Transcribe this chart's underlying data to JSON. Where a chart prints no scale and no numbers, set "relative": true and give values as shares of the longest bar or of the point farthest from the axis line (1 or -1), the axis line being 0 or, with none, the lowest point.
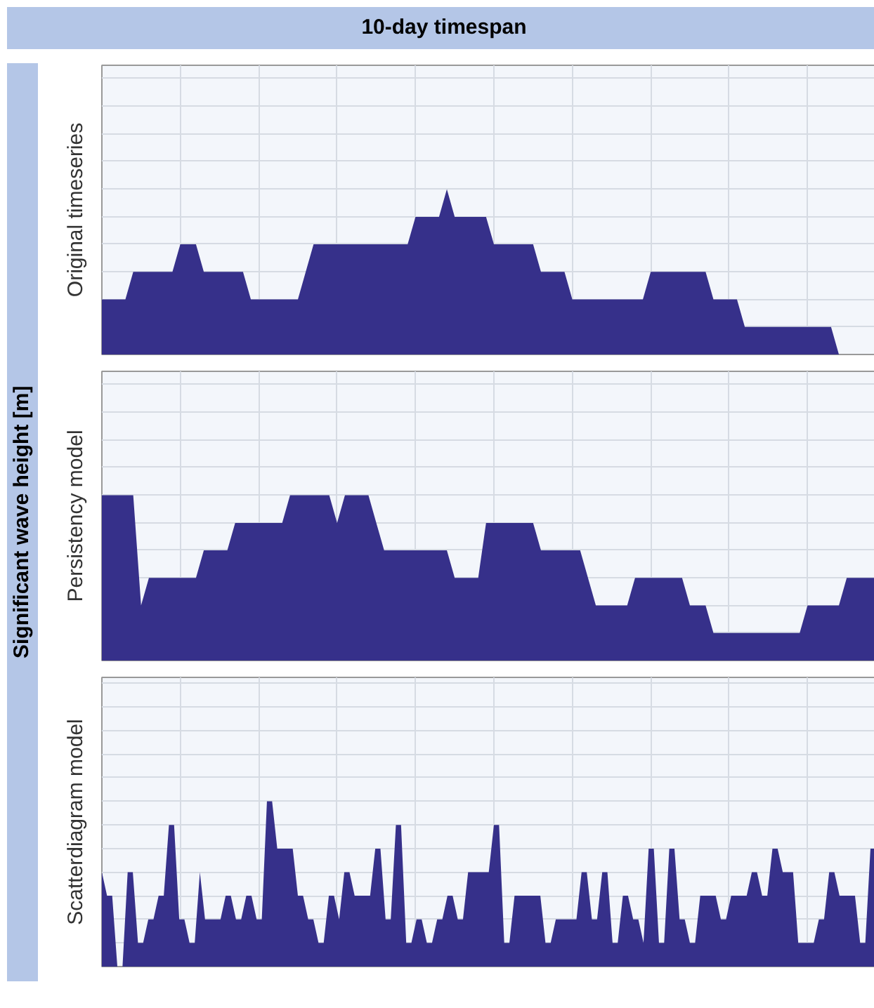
{
  "chart_data": [
    {
      "type": "area",
      "title": "10-day timespan",
      "ylabel": "Original timeseries",
      "annotations": [
        "Significant wave height [m]"
      ],
      "relative": true,
      "grid": true,
      "color": "#36308a",
      "categories": [
        null,
        null,
        null,
        null,
        null,
        null,
        null,
        null,
        null,
        null,
        null,
        null,
        null,
        null,
        null,
        null,
        null,
        null,
        null,
        null,
        null,
        null,
        null,
        null,
        null,
        null,
        null,
        null,
        null,
        null,
        null,
        null,
        null,
        null,
        null,
        null,
        null,
        null,
        null,
        null,
        null,
        null,
        null,
        null,
        null,
        null,
        null,
        null,
        null,
        null,
        null,
        null,
        null,
        null,
        null,
        null,
        null,
        null,
        null,
        null,
        null,
        null,
        null,
        null,
        null,
        null,
        null,
        null,
        null,
        null,
        null,
        null,
        null,
        null,
        null,
        null,
        null,
        null,
        null,
        null,
        null,
        null,
        null,
        null,
        null,
        null,
        null,
        null,
        null,
        null,
        null,
        null,
        null,
        null,
        null,
        null,
        null,
        null,
        null,
        null,
        null
      ],
      "values": [
        0.333,
        0.333,
        0.333,
        0.333,
        0.5,
        0.5,
        0.5,
        0.5,
        0.5,
        0.5,
        0.667,
        0.667,
        0.667,
        0.5,
        0.5,
        0.5,
        0.5,
        0.5,
        0.5,
        0.333,
        0.333,
        0.333,
        0.333,
        0.333,
        0.333,
        0.333,
        0.5,
        0.667,
        0.667,
        0.667,
        0.667,
        0.667,
        0.667,
        0.667,
        0.667,
        0.667,
        0.667,
        0.667,
        0.667,
        0.667,
        0.833,
        0.833,
        0.833,
        0.833,
        1,
        0.833,
        0.833,
        0.833,
        0.833,
        0.833,
        0.667,
        0.667,
        0.667,
        0.667,
        0.667,
        0.667,
        0.5,
        0.5,
        0.5,
        0.5,
        0.333,
        0.333,
        0.333,
        0.333,
        0.333,
        0.333,
        0.333,
        0.333,
        0.333,
        0.333,
        0.5,
        0.5,
        0.5,
        0.5,
        0.5,
        0.5,
        0.5,
        0.5,
        0.333,
        0.333,
        0.333,
        0.333,
        0.167,
        0.167,
        0.167,
        0.167,
        0.167,
        0.167,
        0.167,
        0.167,
        0.167,
        0.167,
        0.167,
        0.167,
        0,
        0,
        0,
        0,
        0,
        0,
        0
      ]
    },
    {
      "type": "area",
      "ylabel": "Persistency model",
      "relative": true,
      "grid": true,
      "color": "#36308a",
      "categories": [
        null,
        null,
        null,
        null,
        null,
        null,
        null,
        null,
        null,
        null,
        null,
        null,
        null,
        null,
        null,
        null,
        null,
        null,
        null,
        null,
        null,
        null,
        null,
        null,
        null,
        null,
        null,
        null,
        null,
        null,
        null,
        null,
        null,
        null,
        null,
        null,
        null,
        null,
        null,
        null,
        null,
        null,
        null,
        null,
        null,
        null,
        null,
        null,
        null,
        null,
        null,
        null,
        null,
        null,
        null,
        null,
        null,
        null,
        null,
        null,
        null,
        null,
        null,
        null,
        null,
        null,
        null,
        null,
        null,
        null,
        null,
        null,
        null,
        null,
        null,
        null,
        null,
        null,
        null,
        null,
        null,
        null,
        null,
        null,
        null,
        null,
        null,
        null,
        null,
        null,
        null,
        null,
        null,
        null,
        null,
        null,
        null,
        null,
        null,
        null,
        null
      ],
      "values": [
        1,
        1,
        1,
        1,
        1,
        0.333,
        0.5,
        0.5,
        0.5,
        0.5,
        0.5,
        0.5,
        0.5,
        0.667,
        0.667,
        0.667,
        0.667,
        0.833,
        0.833,
        0.833,
        0.833,
        0.833,
        0.833,
        0.833,
        1,
        1,
        1,
        1,
        1,
        1,
        0.833,
        1,
        1,
        1,
        1,
        0.833,
        0.667,
        0.667,
        0.667,
        0.667,
        0.667,
        0.667,
        0.667,
        0.667,
        0.667,
        0.5,
        0.5,
        0.5,
        0.5,
        0.833,
        0.833,
        0.833,
        0.833,
        0.833,
        0.833,
        0.833,
        0.667,
        0.667,
        0.667,
        0.667,
        0.667,
        0.667,
        0.5,
        0.333,
        0.333,
        0.333,
        0.333,
        0.333,
        0.5,
        0.5,
        0.5,
        0.5,
        0.5,
        0.5,
        0.5,
        0.333,
        0.333,
        0.333,
        0.167,
        0.167,
        0.167,
        0.167,
        0.167,
        0.167,
        0.167,
        0.167,
        0.167,
        0.167,
        0.167,
        0.167,
        0.333,
        0.333,
        0.333,
        0.333,
        0.333,
        0.5,
        0.5,
        0.5,
        0.5,
        0.5,
        0.5
      ]
    },
    {
      "type": "area",
      "ylabel": "Scatterdiagram model",
      "relative": true,
      "grid": true,
      "color": "#36308a",
      "categories": [
        null,
        null,
        null,
        null,
        null,
        null,
        null,
        null,
        null,
        null,
        null,
        null,
        null,
        null,
        null,
        null,
        null,
        null,
        null,
        null,
        null,
        null,
        null,
        null,
        null,
        null,
        null,
        null,
        null,
        null,
        null,
        null,
        null,
        null,
        null,
        null,
        null,
        null,
        null,
        null,
        null,
        null,
        null,
        null,
        null,
        null,
        null,
        null,
        null,
        null,
        null,
        null,
        null,
        null,
        null,
        null,
        null,
        null,
        null,
        null,
        null,
        null,
        null,
        null,
        null,
        null,
        null,
        null,
        null,
        null,
        null,
        null,
        null,
        null,
        null,
        null,
        null,
        null,
        null,
        null,
        null,
        null,
        null,
        null,
        null,
        null,
        null,
        null,
        null,
        null,
        null,
        null,
        null,
        null,
        null,
        null,
        null,
        null,
        null,
        null,
        null,
        null,
        null,
        null,
        null,
        null,
        null,
        null,
        null,
        null,
        null,
        null,
        null,
        null,
        null,
        null,
        null,
        null,
        null,
        null,
        null,
        null,
        null,
        null,
        null,
        null,
        null,
        null,
        null,
        null,
        null,
        null,
        null,
        null,
        null,
        null,
        null,
        null,
        null,
        null,
        null,
        null,
        null,
        null,
        null,
        null,
        null,
        null,
        null,
        null,
        null,
        null,
        null
      ],
      "values": [
        0.571,
        0.429,
        0.429,
        0,
        0,
        0.571,
        0.571,
        0.143,
        0.143,
        0.286,
        0.286,
        0.429,
        0.429,
        0.857,
        0.857,
        0.286,
        0.286,
        0.143,
        0.143,
        0.571,
        0.286,
        0.286,
        0.286,
        0.286,
        0.429,
        0.429,
        0.286,
        0.286,
        0.429,
        0.429,
        0.286,
        0.286,
        1,
        1,
        0.714,
        0.714,
        0.714,
        0.714,
        0.429,
        0.429,
        0.286,
        0.286,
        0.143,
        0.143,
        0.429,
        0.429,
        0.286,
        0.571,
        0.571,
        0.429,
        0.429,
        0.429,
        0.429,
        0.714,
        0.714,
        0.286,
        0.286,
        0.857,
        0.857,
        0.143,
        0.143,
        0.286,
        0.286,
        0.143,
        0.143,
        0.286,
        0.286,
        0.429,
        0.429,
        0.286,
        0.286,
        0.571,
        0.571,
        0.571,
        0.571,
        0.571,
        0.857,
        0.857,
        0.143,
        0.143,
        0.429,
        0.429,
        0.429,
        0.429,
        0.429,
        0.429,
        0.143,
        0.143,
        0.286,
        0.286,
        0.286,
        0.286,
        0.286,
        0.571,
        0.571,
        0.286,
        0.286,
        0.571,
        0.571,
        0.143,
        0.143,
        0.429,
        0.429,
        0.286,
        0.286,
        0.143,
        0.714,
        0.714,
        0.143,
        0.143,
        0.714,
        0.714,
        0.286,
        0.286,
        0.143,
        0.143,
        0.429,
        0.429,
        0.429,
        0.429,
        0.286,
        0.286,
        0.429,
        0.429,
        0.429,
        0.429,
        0.571,
        0.571,
        0.429,
        0.429,
        0.714,
        0.714,
        0.571,
        0.571,
        0.571,
        0.143,
        0.143,
        0.143,
        0.143,
        0.286,
        0.286,
        0.571,
        0.571,
        0.429,
        0.429,
        0.429,
        0.429,
        0.143,
        0.143,
        0.714,
        0.714,
        0.143,
        0.286
      ]
    }
  ]
}
